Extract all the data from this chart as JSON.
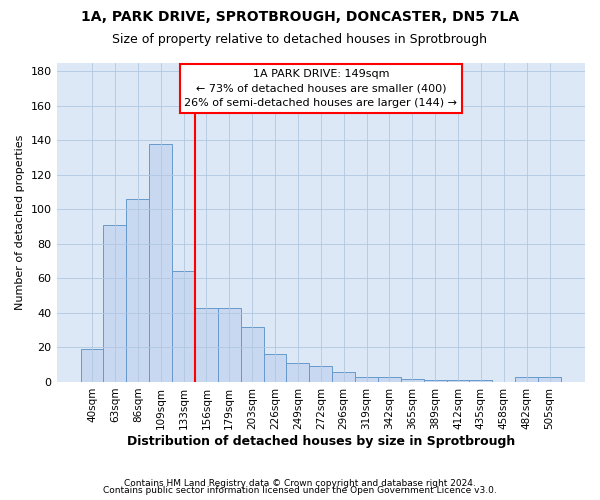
{
  "title1": "1A, PARK DRIVE, SPROTBROUGH, DONCASTER, DN5 7LA",
  "title2": "Size of property relative to detached houses in Sprotbrough",
  "xlabel": "Distribution of detached houses by size in Sprotbrough",
  "ylabel": "Number of detached properties",
  "bar_labels": [
    "40sqm",
    "63sqm",
    "86sqm",
    "109sqm",
    "133sqm",
    "156sqm",
    "179sqm",
    "203sqm",
    "226sqm",
    "249sqm",
    "272sqm",
    "296sqm",
    "319sqm",
    "342sqm",
    "365sqm",
    "389sqm",
    "412sqm",
    "435sqm",
    "458sqm",
    "482sqm",
    "505sqm"
  ],
  "bar_values": [
    19,
    91,
    106,
    138,
    64,
    43,
    43,
    32,
    16,
    11,
    9,
    6,
    3,
    3,
    2,
    1,
    1,
    1,
    0,
    3,
    3
  ],
  "bar_color": "#c8d8f0",
  "bar_edge_color": "#6699cc",
  "vline_x_idx": 5,
  "vline_color": "red",
  "ylim": [
    0,
    185
  ],
  "yticks": [
    0,
    20,
    40,
    60,
    80,
    100,
    120,
    140,
    160,
    180
  ],
  "annotation_text": "1A PARK DRIVE: 149sqm\n← 73% of detached houses are smaller (400)\n26% of semi-detached houses are larger (144) →",
  "annotation_box_color": "white",
  "annotation_box_edge": "red",
  "footer1": "Contains HM Land Registry data © Crown copyright and database right 2024.",
  "footer2": "Contains public sector information licensed under the Open Government Licence v3.0.",
  "bg_color": "#ffffff",
  "plot_bg_color": "#dce8f5",
  "grid_color": "#b0c8e0",
  "figsize": [
    6.0,
    5.0
  ],
  "dpi": 100
}
